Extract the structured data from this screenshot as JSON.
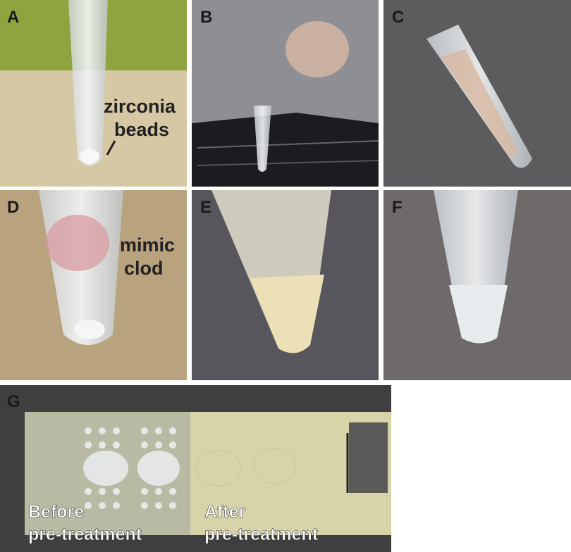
{
  "panels": [
    {
      "label": "A",
      "annotation": [
        "zirconia",
        "beads"
      ]
    },
    {
      "label": "B"
    },
    {
      "label": "C"
    },
    {
      "label": "D",
      "annotation": [
        "mimic",
        "clod"
      ]
    },
    {
      "label": "E"
    },
    {
      "label": "F"
    },
    {
      "label": "G",
      "captions": [
        [
          "Before",
          "pre-treatment"
        ],
        [
          "After",
          "pre-treatment"
        ]
      ]
    }
  ]
}
